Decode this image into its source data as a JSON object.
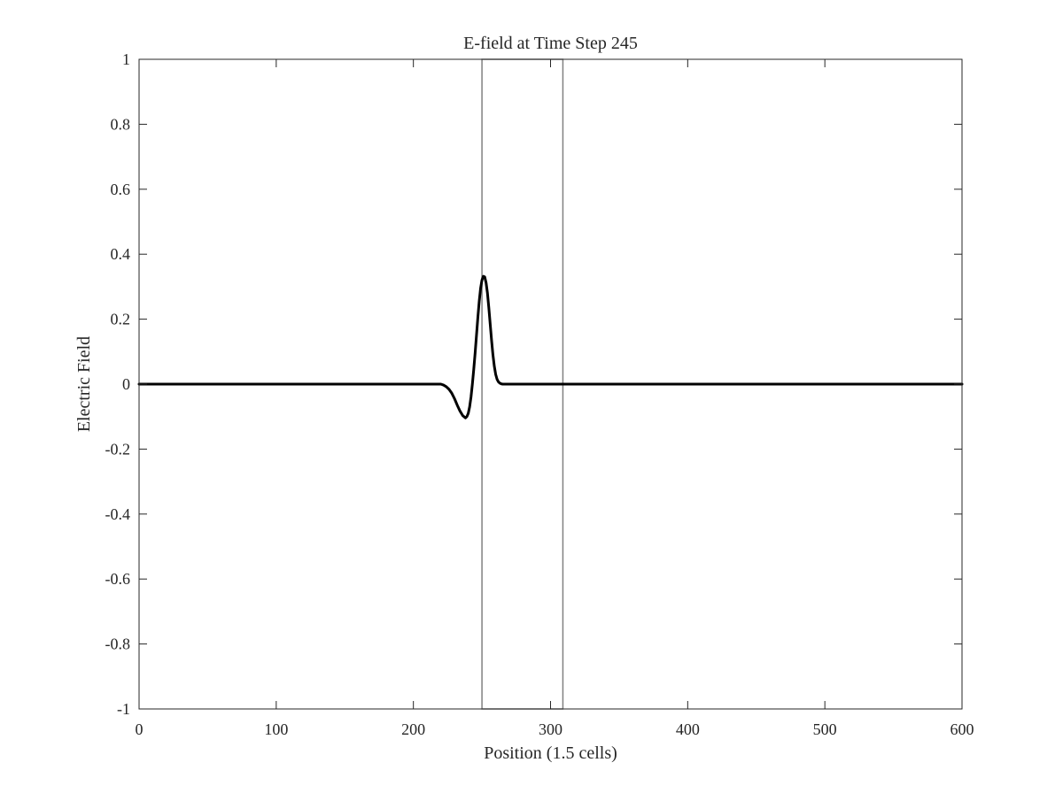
{
  "chart_data": {
    "type": "line",
    "title": "E-field at Time Step 245",
    "xlabel": "Position (1.5 cells)",
    "ylabel": "Electric Field",
    "xlim": [
      0,
      600
    ],
    "ylim": [
      -1,
      1
    ],
    "xticks": [
      0,
      100,
      200,
      300,
      400,
      500,
      600
    ],
    "yticks": [
      -1,
      -0.8,
      -0.6,
      -0.4,
      -0.2,
      0,
      0.2,
      0.4,
      0.6,
      0.8,
      1
    ],
    "xtick_labels": [
      "0",
      "100",
      "200",
      "300",
      "400",
      "500",
      "600"
    ],
    "ytick_labels": [
      "-1",
      "-0.8",
      "-0.6",
      "-0.4",
      "-0.2",
      "0",
      "0.2",
      "0.4",
      "0.6",
      "0.8",
      "1"
    ],
    "grid": false,
    "legend": "none",
    "series": [
      {
        "color": "#000000",
        "x": [
          0,
          50,
          100,
          150,
          200,
          215,
          220,
          222,
          224,
          226,
          228,
          230,
          232,
          234,
          236,
          238,
          239,
          240,
          241,
          242,
          243,
          244,
          245,
          246,
          247,
          248,
          249,
          250,
          251,
          252,
          253,
          254,
          255,
          256,
          257,
          258,
          259,
          260,
          261,
          262,
          263,
          264,
          265,
          266,
          268,
          270,
          300,
          400,
          500,
          600
        ],
        "y": [
          0,
          0,
          0,
          0,
          0,
          0,
          0.0,
          -0.003,
          -0.008,
          -0.016,
          -0.028,
          -0.045,
          -0.065,
          -0.083,
          -0.097,
          -0.104,
          -0.1,
          -0.09,
          -0.07,
          -0.04,
          0.0,
          0.045,
          0.095,
          0.15,
          0.205,
          0.255,
          0.295,
          0.32,
          0.332,
          0.33,
          0.312,
          0.28,
          0.235,
          0.185,
          0.135,
          0.09,
          0.055,
          0.03,
          0.015,
          0.007,
          0.003,
          0.001,
          0,
          0,
          0,
          0,
          0,
          0,
          0,
          0
        ]
      }
    ],
    "annotations": {
      "region_rect": {
        "x": [
          250,
          309
        ],
        "y": [
          -1,
          1
        ],
        "color": "#808080"
      }
    }
  }
}
